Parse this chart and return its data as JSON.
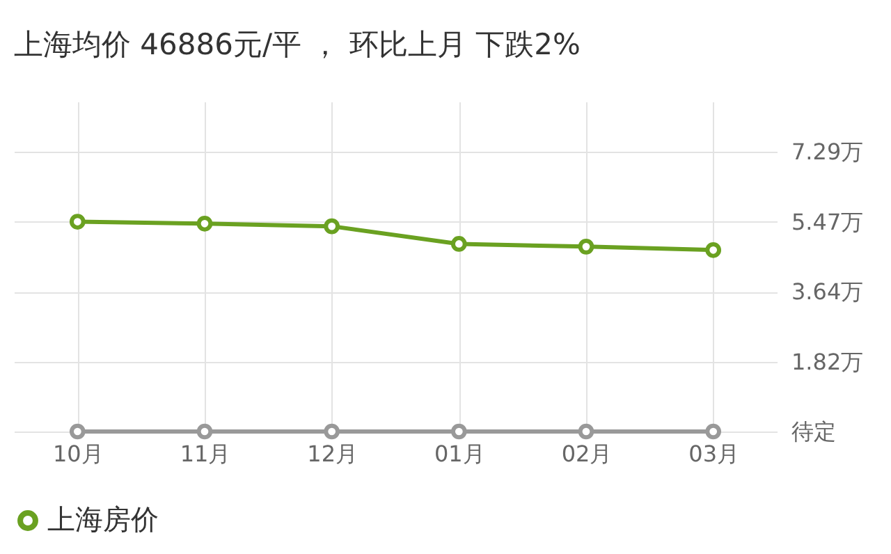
{
  "chart_data": {
    "type": "line",
    "title": "上海均价 46886元/平 ， 环比上月 下跌2%",
    "categories": [
      "10月",
      "11月",
      "12月",
      "01月",
      "02月",
      "03月"
    ],
    "series": [
      {
        "name": "上海房价",
        "color": "#6aa121",
        "values": [
          5.47,
          5.42,
          5.35,
          4.89,
          4.82,
          4.73
        ]
      },
      {
        "color": "#999999",
        "values": [
          0,
          0,
          0,
          0,
          0,
          0
        ]
      }
    ],
    "ylim": [
      0,
      8.6
    ],
    "yticks": [
      {
        "value": 0,
        "label": "待定"
      },
      {
        "value": 1.82,
        "label": "1.82万"
      },
      {
        "value": 3.64,
        "label": "3.64万"
      },
      {
        "value": 5.47,
        "label": "5.47万"
      },
      {
        "value": 7.29,
        "label": "7.29万"
      }
    ],
    "grid": true,
    "legend": "bottom",
    "marker": "circle",
    "line_style": "solid"
  }
}
